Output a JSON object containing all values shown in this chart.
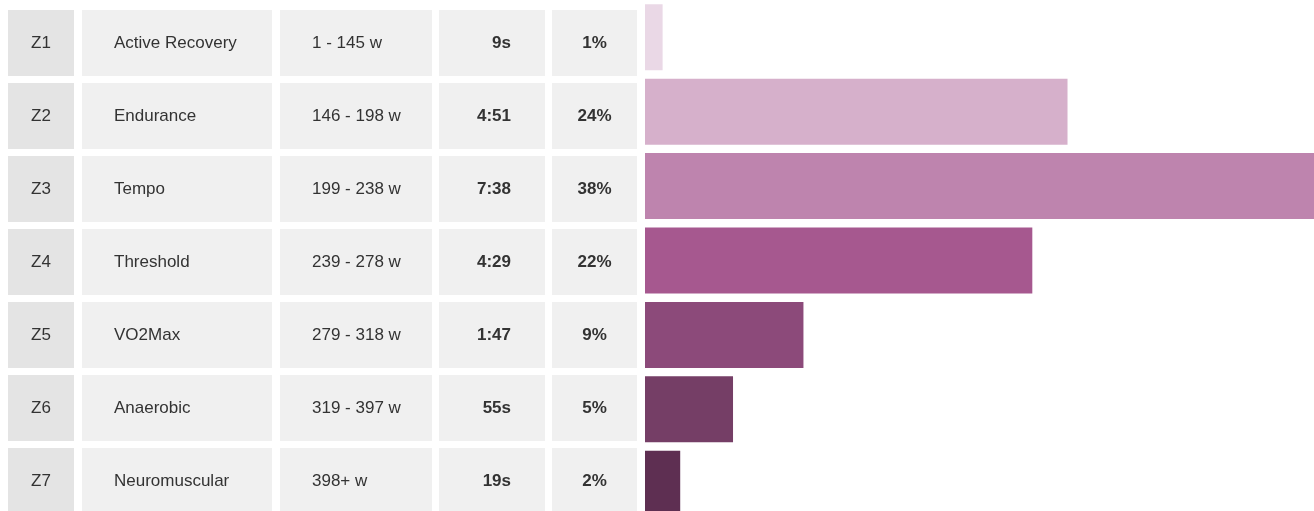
{
  "chart_data": {
    "type": "bar",
    "orientation": "horizontal",
    "categories": [
      "Z1",
      "Z2",
      "Z3",
      "Z4",
      "Z5",
      "Z6",
      "Z7"
    ],
    "values": [
      1,
      24,
      38,
      22,
      9,
      5,
      2
    ],
    "value_labels": [
      "1%",
      "24%",
      "38%",
      "22%",
      "9%",
      "5%",
      "2%"
    ],
    "colors": [
      "#ead8e6",
      "#d6b0cb",
      "#be84ae",
      "#a6588f",
      "#8c4a7a",
      "#753e66",
      "#5e2f52"
    ],
    "annotations": [
      "Active Recovery",
      "1 - 145 w",
      "9s",
      "Endurance",
      "146 - 198 w",
      "4:51",
      "Tempo",
      "199 - 238 w",
      "7:38",
      "Threshold",
      "239 - 278 w",
      "4:29",
      "VO2Max",
      "279 - 318 w",
      "1:47",
      "Anaerobic",
      "319 - 397 w",
      "55s",
      "Neuromuscular",
      "398+ w",
      "19s"
    ]
  }
}
